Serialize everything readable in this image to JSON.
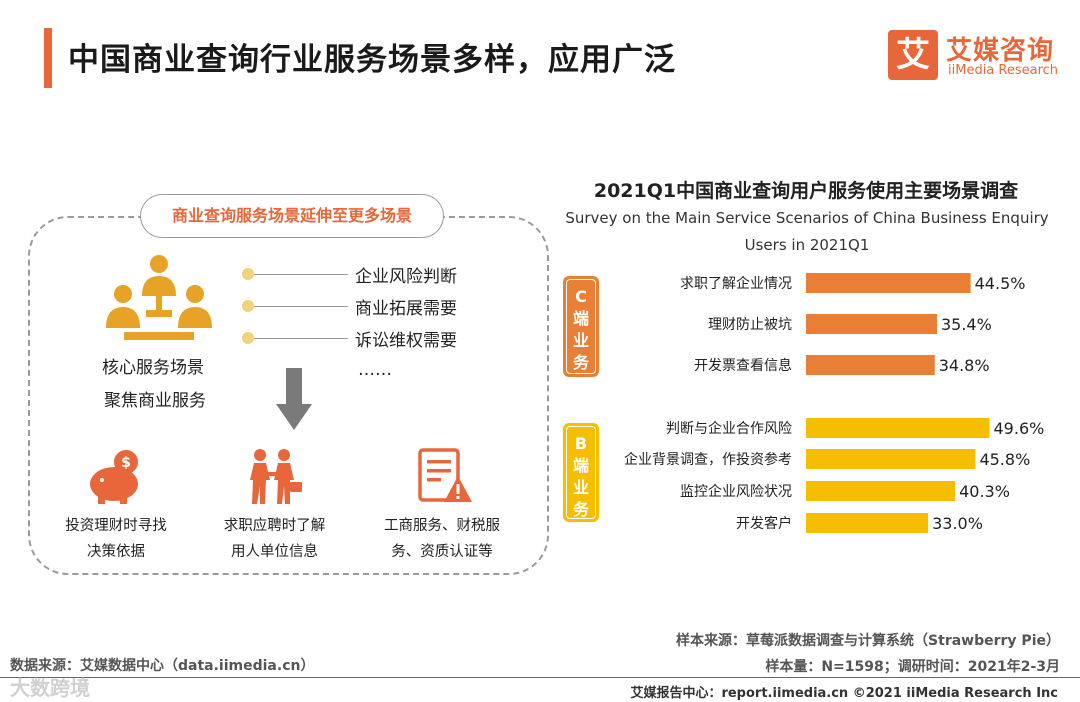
{
  "header": {
    "title": "中国商业查询行业服务场景多样，应用广泛",
    "logo_mark": "艾",
    "logo_cn": "艾媒咨询",
    "logo_en": "iiMedia Research"
  },
  "left_panel": {
    "pill_label": "商业查询服务场景延伸至更多场景",
    "core_line1": "核心服务场景",
    "core_line2": "聚焦商业服务",
    "bullets": [
      "企业风险判断",
      "商业拓展需要",
      "诉讼维权需要",
      "……"
    ],
    "icons": [
      {
        "icon": "piggy-bank-icon",
        "line1": "投资理财时寻找",
        "line2": "决策依据"
      },
      {
        "icon": "handshake-people-icon",
        "line1": "求职应聘时了解",
        "line2": "用人单位信息"
      },
      {
        "icon": "document-warning-icon",
        "line1": "工商服务、财税服",
        "line2": "务、资质认证等"
      }
    ]
  },
  "chart_data": {
    "type": "bar",
    "orientation": "horizontal",
    "title": "2021Q1中国商业查询用户服务使用主要场景调查",
    "subtitle_line1": "Survey on the Main Service Scenarios of China Business Enquiry",
    "subtitle_line2": "Users in 2021Q1",
    "unit": "%",
    "groups": [
      {
        "label": "C端业务",
        "label_chars": [
          "C",
          "端",
          "业",
          "务"
        ],
        "color": "#e87f35",
        "categories": [
          "求职了解企业情况",
          "理财防止被坑",
          "开发票查看信息"
        ],
        "values": [
          44.5,
          35.4,
          34.8
        ],
        "value_labels": [
          "44.5%",
          "35.4%",
          "34.8%"
        ]
      },
      {
        "label": "B端业务",
        "label_chars": [
          "B",
          "端",
          "业",
          "务"
        ],
        "color": "#f5be00",
        "categories": [
          "判断与企业合作风险",
          "企业背景调查，作投资参考",
          "监控企业风险状况",
          "开发客户"
        ],
        "values": [
          49.6,
          45.8,
          40.3,
          33.0
        ],
        "value_labels": [
          "49.6%",
          "45.8%",
          "40.3%",
          "33.0%"
        ]
      }
    ]
  },
  "footer": {
    "source_left": "数据来源：艾媒数据中心（data.iimedia.cn）",
    "sample_source": "样本来源：草莓派数据调查与计算系统（Strawberry Pie）",
    "sample_size": "样本量：N=1598；调研时间：2021年2-3月",
    "report": "艾媒报告中心：report.iimedia.cn ©2021  iiMedia Research  Inc",
    "watermark": "大数跨境"
  }
}
